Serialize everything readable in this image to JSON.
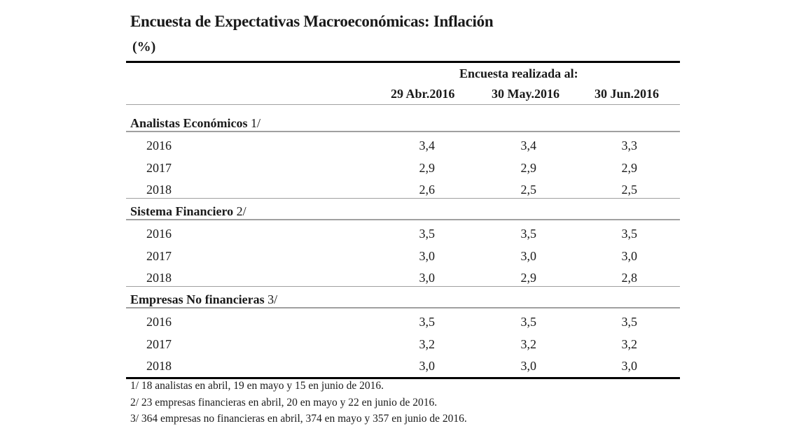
{
  "title": "Encuesta de Expectativas Macroeconómicas: Inflación",
  "unit": "(%)",
  "header": {
    "group_label": "Encuesta realizada al:",
    "columns": [
      "29 Abr.2016",
      "30 May.2016",
      "30 Jun.2016"
    ]
  },
  "sections": [
    {
      "label": "Analistas Económicos",
      "note": "1/",
      "rows": [
        {
          "year": "2016",
          "values": [
            "3,4",
            "3,4",
            "3,3"
          ]
        },
        {
          "year": "2017",
          "values": [
            "2,9",
            "2,9",
            "2,9"
          ]
        },
        {
          "year": "2018",
          "values": [
            "2,6",
            "2,5",
            "2,5"
          ]
        }
      ]
    },
    {
      "label": "Sistema Financiero",
      "note": "2/",
      "rows": [
        {
          "year": "2016",
          "values": [
            "3,5",
            "3,5",
            "3,5"
          ]
        },
        {
          "year": "2017",
          "values": [
            "3,0",
            "3,0",
            "3,0"
          ]
        },
        {
          "year": "2018",
          "values": [
            "3,0",
            "2,9",
            "2,8"
          ]
        }
      ]
    },
    {
      "label": "Empresas No financieras",
      "note": "3/",
      "rows": [
        {
          "year": "2016",
          "values": [
            "3,5",
            "3,5",
            "3,5"
          ]
        },
        {
          "year": "2017",
          "values": [
            "3,2",
            "3,2",
            "3,2"
          ]
        },
        {
          "year": "2018",
          "values": [
            "3,0",
            "3,0",
            "3,0"
          ]
        }
      ]
    }
  ],
  "footnotes": [
    "1/ 18 analistas en abril, 19 en mayo y 15 en junio de 2016.",
    "2/ 23 empresas financieras en abril, 20 en mayo y 22 en junio de 2016.",
    "3/ 364 empresas no financieras en abril, 374 en mayo y 357 en junio de 2016."
  ]
}
